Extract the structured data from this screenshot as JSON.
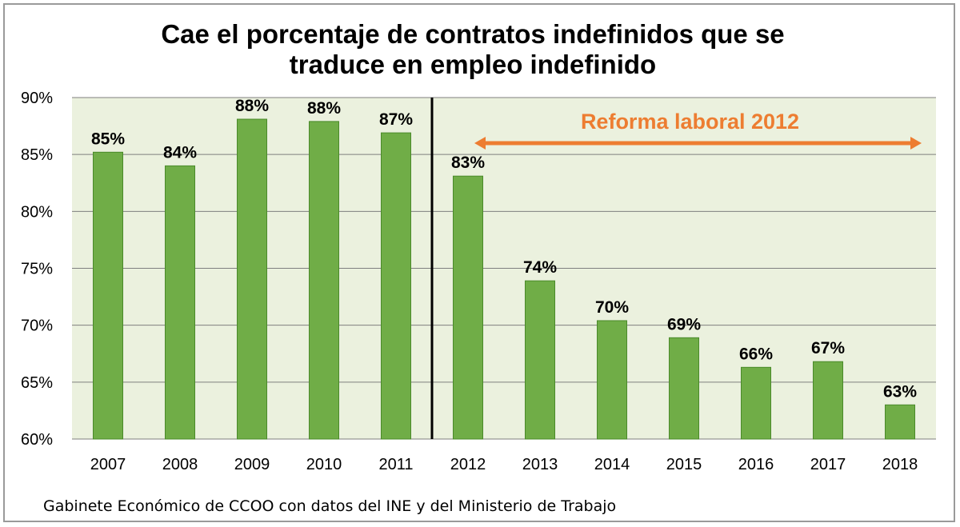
{
  "title": [
    "Cae el porcentaje de contratos indefinidos que se",
    "traduce en empleo indefinido"
  ],
  "source": "Gabinete Económico de CCOO con datos del INE y del Ministerio de Trabajo",
  "annotation": {
    "text": "Reforma laboral 2012",
    "from": "2012",
    "to": "2018",
    "divider_between": [
      "2011",
      "2012"
    ],
    "color": "#ed7d31"
  },
  "colors": {
    "bar": "#70ad47",
    "bar_edge": "#4a8a2a",
    "plot_background": "#ebf1de",
    "grid": "#7f7f7f",
    "divider": "#000000"
  },
  "chart_data": {
    "type": "bar",
    "categories": [
      "2007",
      "2008",
      "2009",
      "2010",
      "2011",
      "2012",
      "2013",
      "2014",
      "2015",
      "2016",
      "2017",
      "2018"
    ],
    "values": [
      85.2,
      84.0,
      88.1,
      87.9,
      86.9,
      83.1,
      73.9,
      70.4,
      68.9,
      66.3,
      66.8,
      63.0
    ],
    "data_labels": [
      "85%",
      "84%",
      "88%",
      "88%",
      "87%",
      "83%",
      "74%",
      "70%",
      "69%",
      "66%",
      "67%",
      "63%"
    ],
    "y_ticks": [
      "60%",
      "65%",
      "70%",
      "75%",
      "80%",
      "85%",
      "90%"
    ],
    "y_tick_values": [
      60,
      65,
      70,
      75,
      80,
      85,
      90
    ],
    "ylim": [
      60,
      90
    ],
    "grid": true,
    "legend": false
  }
}
